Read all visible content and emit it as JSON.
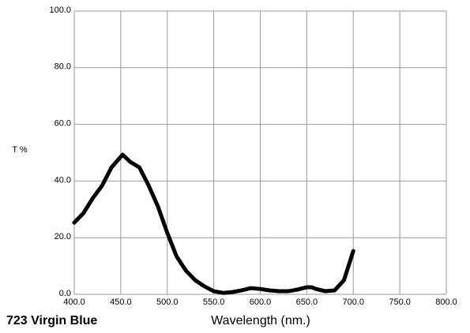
{
  "chart_data": {
    "type": "line",
    "title": "723 Virgin Blue",
    "x_label": "Wavelength (nm.)",
    "y_label": "T %",
    "x": [
      400,
      410,
      420,
      430,
      440,
      452,
      460,
      470,
      480,
      490,
      500,
      510,
      520,
      530,
      540,
      550,
      560,
      570,
      580,
      590,
      600,
      610,
      620,
      630,
      640,
      650,
      655,
      660,
      670,
      680,
      690,
      700
    ],
    "series": [
      {
        "name": "723 Virgin Blue",
        "color": "#000000",
        "values": [
          25.3,
          28.7,
          34,
          38.4,
          44.8,
          49.3,
          46.8,
          44.8,
          38.4,
          31,
          21.7,
          13.4,
          8.4,
          5,
          2.8,
          1.1,
          0.5,
          0.8,
          1.4,
          2.2,
          1.9,
          1.4,
          1.1,
          1.1,
          1.7,
          2.5,
          2.5,
          1.9,
          1.1,
          1.4,
          5,
          15.3
        ]
      }
    ],
    "xlim": [
      400,
      800
    ],
    "xticks": [
      {
        "value": 400,
        "label": "400.0"
      },
      {
        "value": 450,
        "label": "450.0"
      },
      {
        "value": 500,
        "label": "500.0"
      },
      {
        "value": 550,
        "label": "550.0"
      },
      {
        "value": 600,
        "label": "600.0"
      },
      {
        "value": 650,
        "label": "650.0"
      },
      {
        "value": 700,
        "label": "700.0"
      },
      {
        "value": 750,
        "label": "750.0"
      },
      {
        "value": 800,
        "label": "800.0"
      }
    ],
    "ylim": [
      0,
      100
    ],
    "yticks": [
      {
        "value": 0,
        "label": "0.0"
      },
      {
        "value": 20,
        "label": "20.0"
      },
      {
        "value": 40,
        "label": "40.0"
      },
      {
        "value": 60,
        "label": "60.0"
      },
      {
        "value": 80,
        "label": "80.0"
      },
      {
        "value": 100,
        "label": "100.0"
      }
    ],
    "grid": true
  }
}
